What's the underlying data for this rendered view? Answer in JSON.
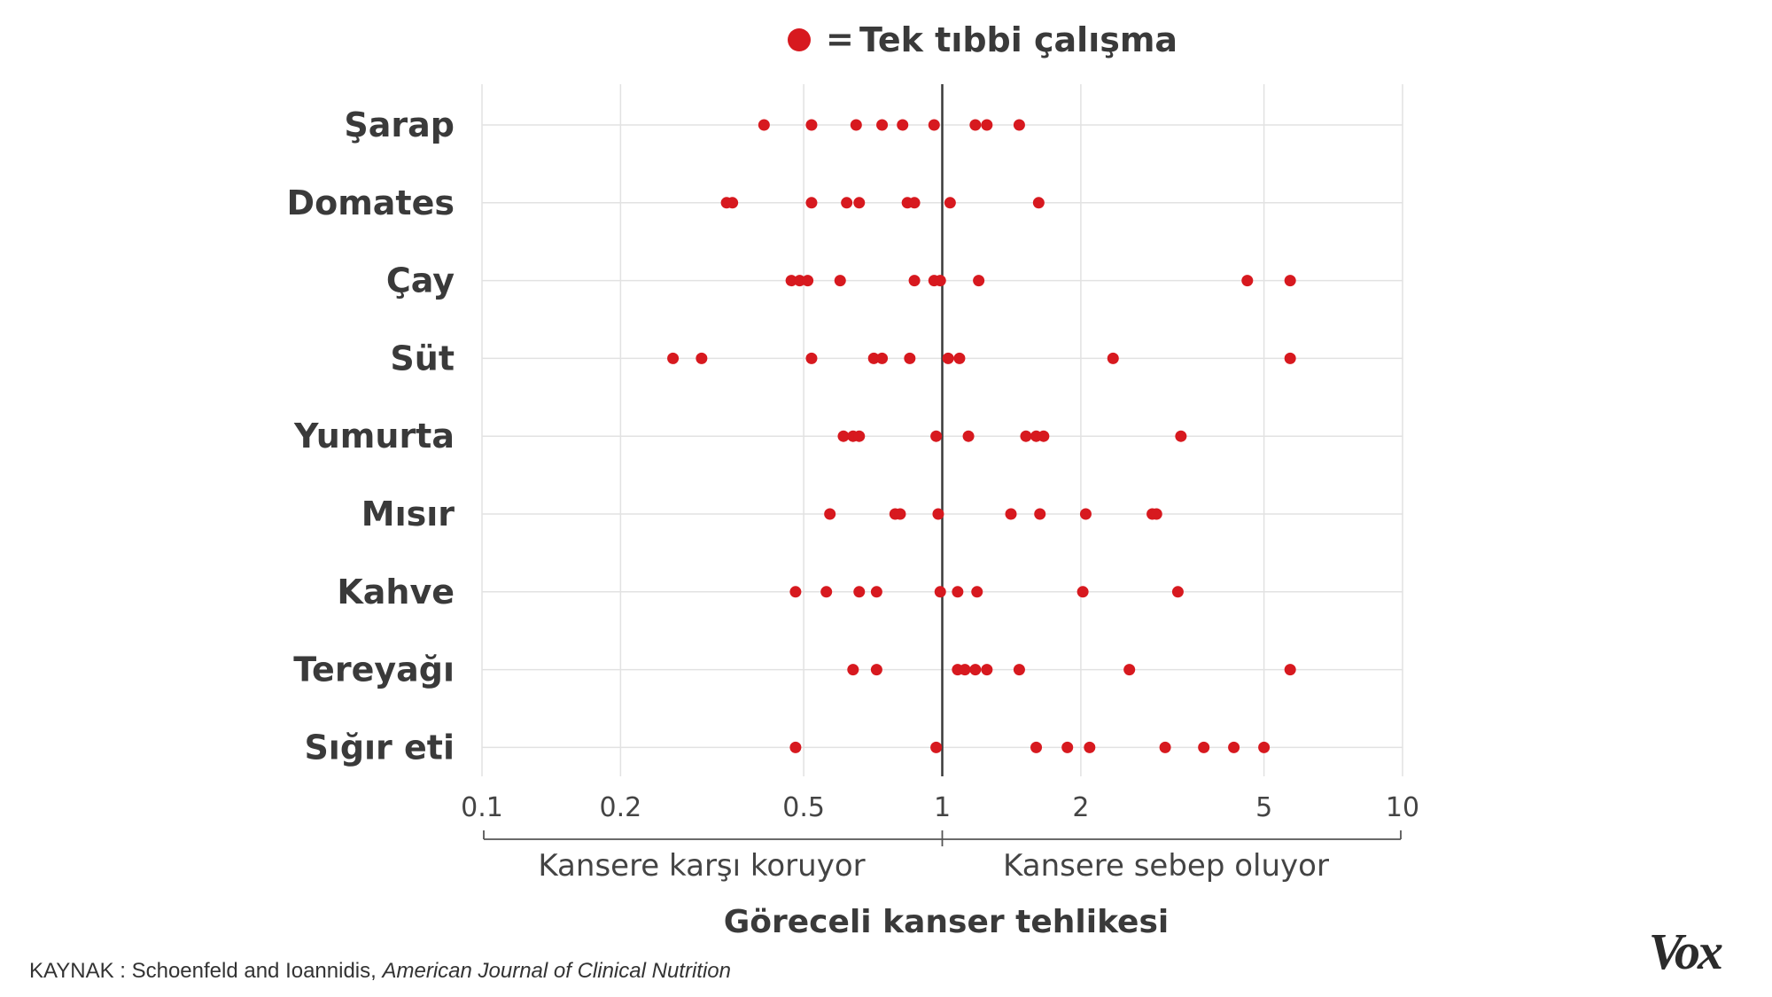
{
  "legend": {
    "symbol_label": "=",
    "text": "Tek tıbbi çalışma"
  },
  "chart_data": {
    "type": "scatter",
    "x_scale": "log",
    "xlim": [
      0.1,
      10
    ],
    "x_ticks": [
      0.1,
      0.2,
      0.5,
      1,
      2,
      5,
      10
    ],
    "x_tick_labels": [
      "0.1",
      "0.2",
      "0.5",
      "1",
      "2",
      "5",
      "10"
    ],
    "reference_line_x": 1,
    "xlabel": "Göreceli kanser tehlikesi",
    "range_labels": {
      "left": "Kansere karşı koruyor",
      "right": "Kansere sebep oluyor"
    },
    "grid": true,
    "marker_color": "#d7191f",
    "categories": [
      {
        "name": "Şarap",
        "values": [
          0.41,
          0.52,
          0.65,
          0.74,
          0.82,
          0.96,
          1.18,
          1.25,
          1.47
        ]
      },
      {
        "name": "Domates",
        "values": [
          0.34,
          0.35,
          0.52,
          0.62,
          0.66,
          0.84,
          0.87,
          1.04,
          1.62
        ]
      },
      {
        "name": "Çay",
        "values": [
          0.47,
          0.49,
          0.51,
          0.6,
          0.87,
          0.96,
          0.99,
          1.2,
          4.6,
          5.7
        ]
      },
      {
        "name": "Süt",
        "values": [
          0.26,
          0.3,
          0.52,
          0.71,
          0.74,
          0.85,
          1.03,
          1.09,
          2.35,
          5.7
        ]
      },
      {
        "name": "Yumurta",
        "values": [
          0.61,
          0.64,
          0.66,
          0.97,
          1.14,
          1.52,
          1.6,
          1.66,
          3.3
        ]
      },
      {
        "name": "Mısır",
        "values": [
          0.57,
          0.79,
          0.81,
          0.98,
          1.41,
          1.63,
          2.05,
          2.86,
          2.92
        ]
      },
      {
        "name": "Kahve",
        "values": [
          0.48,
          0.56,
          0.66,
          0.72,
          0.99,
          1.08,
          1.19,
          2.02,
          3.25
        ]
      },
      {
        "name": "Tereyağı",
        "values": [
          0.64,
          0.72,
          1.08,
          1.12,
          1.18,
          1.25,
          1.47,
          2.55,
          5.7
        ]
      },
      {
        "name": "Sığır eti",
        "values": [
          0.48,
          0.97,
          1.6,
          1.87,
          2.09,
          3.05,
          3.7,
          4.3,
          5.0
        ]
      }
    ]
  },
  "source": {
    "label": "KAYNAK : Schoenfeld and Ioannidis, ",
    "journal": "American Journal of Clinical Nutrition"
  },
  "brand": "Vox"
}
